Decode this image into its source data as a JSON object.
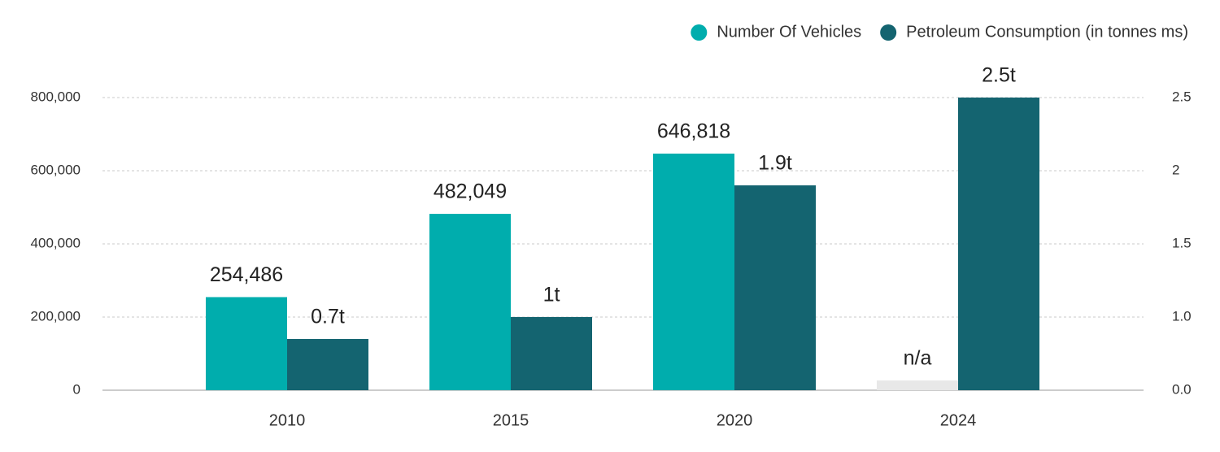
{
  "chart_data": {
    "type": "bar",
    "categories": [
      "2010",
      "2015",
      "2020",
      "2024"
    ],
    "series": [
      {
        "name": "Number Of Vehicles",
        "color": "#00adad",
        "values": [
          254486,
          482049,
          646818,
          null
        ],
        "value_labels": [
          "254,486",
          "482,049",
          "646,818",
          "n/a"
        ]
      },
      {
        "name": "Petroleum Consumption (in tonnes ms)",
        "color": "#146470",
        "axis": "y2",
        "values": [
          0.7,
          1,
          1.9,
          2.5
        ],
        "value_labels": [
          "0.7t",
          "1t",
          "1.9t",
          "2.5t"
        ]
      }
    ],
    "ylim": [
      0,
      800000
    ],
    "yticks": [
      {
        "value": 0,
        "label": "0"
      },
      {
        "value": 200000,
        "label": "200,000"
      },
      {
        "value": 400000,
        "label": "400,000"
      },
      {
        "value": 600000,
        "label": "600,000"
      },
      {
        "value": 800000,
        "label": "800,000"
      }
    ],
    "y2lim": [
      0,
      2.5
    ],
    "y2ticks": [
      {
        "value": 0,
        "label": "0.0"
      },
      {
        "value": 1,
        "label": "1.0"
      },
      {
        "value": 1.5,
        "label": "1.5"
      },
      2,
      2.5
    ],
    "y2ticks_labels_note": null,
    "grid": true,
    "legend": "top-right"
  }
}
